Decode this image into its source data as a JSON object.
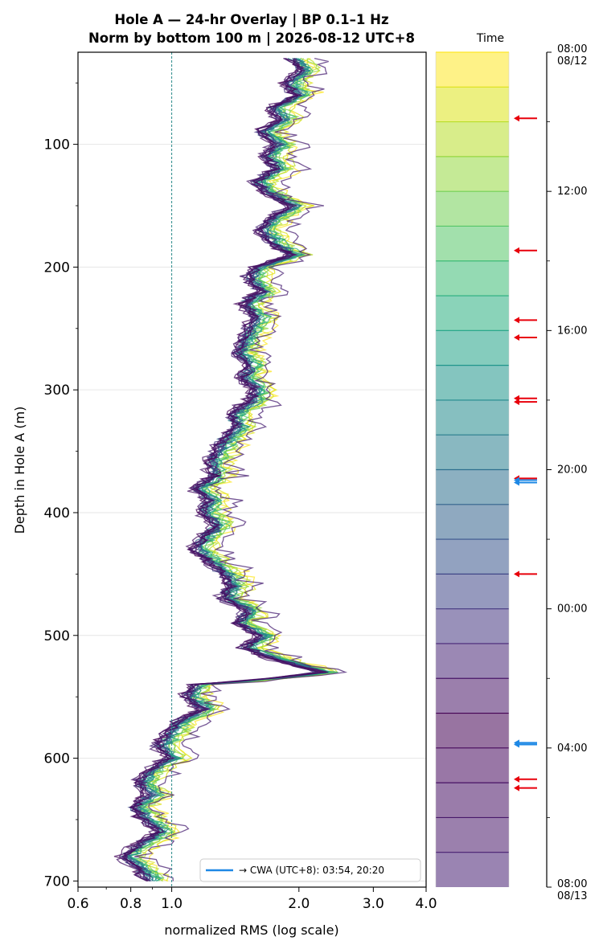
{
  "chart_data": {
    "type": "line",
    "title": "Hole A — 24-hr Overlay  |  BP 0.1–1 Hz",
    "subtitle": "Norm by bottom 100 m  |  2026-08-12 UTC+8",
    "xlabel": "normalized RMS  (log scale)",
    "ylabel": "Depth in Hole A (m)",
    "x_scale": "log",
    "xlim": [
      0.6,
      4.0
    ],
    "ylim": [
      705,
      25
    ],
    "x_ticks": [
      {
        "value": 0.6,
        "label": "0.6"
      },
      {
        "value": 0.8,
        "label": "0.8"
      },
      {
        "value": 1.0,
        "label": "1.0"
      },
      {
        "value": 2.0,
        "label": "2.0"
      },
      {
        "value": 3.0,
        "label": "3.0"
      },
      {
        "value": 4.0,
        "label": "4.0"
      }
    ],
    "y_ticks": [
      {
        "value": 100,
        "label": "100"
      },
      {
        "value": 200,
        "label": "200"
      },
      {
        "value": 300,
        "label": "300"
      },
      {
        "value": 400,
        "label": "400"
      },
      {
        "value": 500,
        "label": "500"
      },
      {
        "value": 600,
        "label": "600"
      },
      {
        "value": 700,
        "label": "700"
      }
    ],
    "grid": "horizontal",
    "reference_line": {
      "x": 1.0,
      "style": "dashed",
      "color": "#2a8a8a"
    },
    "legend": {
      "position": "bottom-right",
      "label": "→ CWA (UTC+8): 03:54, 20:20",
      "color": "#1e88e5"
    },
    "profile": {
      "depths": [
        30,
        40,
        50,
        60,
        70,
        80,
        90,
        100,
        110,
        120,
        130,
        140,
        150,
        160,
        170,
        180,
        190,
        200,
        210,
        220,
        230,
        240,
        250,
        260,
        270,
        280,
        290,
        300,
        310,
        320,
        330,
        340,
        350,
        360,
        370,
        380,
        390,
        400,
        410,
        420,
        430,
        440,
        450,
        460,
        470,
        480,
        490,
        500,
        510,
        520,
        530,
        540,
        550,
        560,
        570,
        580,
        590,
        600,
        610,
        620,
        630,
        640,
        650,
        660,
        670,
        680,
        690,
        700
      ],
      "rms": [
        1.95,
        2.05,
        1.9,
        2.0,
        1.75,
        1.85,
        1.65,
        1.8,
        1.7,
        1.8,
        1.6,
        1.7,
        1.95,
        1.75,
        1.65,
        1.75,
        1.95,
        1.6,
        1.55,
        1.65,
        1.5,
        1.6,
        1.55,
        1.5,
        1.45,
        1.55,
        1.5,
        1.6,
        1.55,
        1.4,
        1.45,
        1.35,
        1.3,
        1.25,
        1.28,
        1.15,
        1.25,
        1.2,
        1.3,
        1.2,
        1.15,
        1.25,
        1.35,
        1.4,
        1.35,
        1.55,
        1.45,
        1.65,
        1.5,
        1.8,
        2.3,
        1.15,
        1.1,
        1.2,
        1.05,
        1.0,
        0.95,
        1.0,
        0.9,
        0.85,
        0.9,
        0.82,
        0.88,
        0.95,
        0.85,
        0.78,
        0.85,
        0.9
      ]
    },
    "series": [
      {
        "hour_offset": 0,
        "factor": 1.09,
        "jitter": 0.04
      },
      {
        "hour_offset": 1,
        "factor": 1.08,
        "jitter": 0.03
      },
      {
        "hour_offset": 2,
        "factor": 1.06,
        "jitter": 0.035
      },
      {
        "hour_offset": 3,
        "factor": 1.05,
        "jitter": 0.03
      },
      {
        "hour_offset": 4,
        "factor": 1.04,
        "jitter": 0.03
      },
      {
        "hour_offset": 5,
        "factor": 1.03,
        "jitter": 0.025
      },
      {
        "hour_offset": 6,
        "factor": 1.03,
        "jitter": 0.03
      },
      {
        "hour_offset": 7,
        "factor": 1.02,
        "jitter": 0.025
      },
      {
        "hour_offset": 8,
        "factor": 1.02,
        "jitter": 0.03
      },
      {
        "hour_offset": 9,
        "factor": 1.01,
        "jitter": 0.02
      },
      {
        "hour_offset": 10,
        "factor": 1.01,
        "jitter": 0.025
      },
      {
        "hour_offset": 11,
        "factor": 1.0,
        "jitter": 0.02
      },
      {
        "hour_offset": 12,
        "factor": 1.0,
        "jitter": 0.02
      },
      {
        "hour_offset": 13,
        "factor": 0.995,
        "jitter": 0.02
      },
      {
        "hour_offset": 14,
        "factor": 0.99,
        "jitter": 0.02
      },
      {
        "hour_offset": 15,
        "factor": 0.99,
        "jitter": 0.02
      },
      {
        "hour_offset": 16,
        "factor": 0.985,
        "jitter": 0.02
      },
      {
        "hour_offset": 17,
        "factor": 0.98,
        "jitter": 0.02
      },
      {
        "hour_offset": 18,
        "factor": 0.98,
        "jitter": 0.02
      },
      {
        "hour_offset": 19,
        "factor": 0.975,
        "jitter": 0.02
      },
      {
        "hour_offset": 20,
        "factor": 0.975,
        "jitter": 0.02
      },
      {
        "hour_offset": 21,
        "factor": 0.97,
        "jitter": 0.02
      },
      {
        "hour_offset": 22,
        "factor": 0.97,
        "jitter": 0.025
      },
      {
        "hour_offset": 23,
        "factor": 1.12,
        "jitter": 0.06
      }
    ],
    "colorbar": {
      "label": "Time",
      "colors": [
        "#fde725",
        "#dce319",
        "#b8de29",
        "#95d840",
        "#73d055",
        "#55c667",
        "#3cbb75",
        "#29af7f",
        "#20a386",
        "#1f968b",
        "#238a8d",
        "#287d8e",
        "#2d708e",
        "#33638d",
        "#39568c",
        "#404788",
        "#453781",
        "#482677",
        "#481567",
        "#440154",
        "#46085c",
        "#471164",
        "#48186a",
        "#471f72"
      ],
      "bands": 24,
      "ticks": [
        {
          "hour": 0,
          "label": "08:00\n08/12"
        },
        {
          "hour": 4,
          "label": "12:00"
        },
        {
          "hour": 8,
          "label": "16:00"
        },
        {
          "hour": 12,
          "label": "20:00"
        },
        {
          "hour": 16,
          "label": "00:00"
        },
        {
          "hour": 20,
          "label": "04:00"
        },
        {
          "hour": 24,
          "label": "08:00\n08/13"
        }
      ],
      "event_arrows": [
        {
          "hour": 1.9,
          "color": "#e8000b"
        },
        {
          "hour": 5.7,
          "color": "#e8000b"
        },
        {
          "hour": 7.7,
          "color": "#e8000b"
        },
        {
          "hour": 8.2,
          "color": "#e8000b"
        },
        {
          "hour": 9.95,
          "color": "#e8000b"
        },
        {
          "hour": 10.05,
          "color": "#e8000b"
        },
        {
          "hour": 12.25,
          "color": "#e8000b"
        },
        {
          "hour": 12.3,
          "color": "#1e88e5"
        },
        {
          "hour": 12.37,
          "color": "#1e88e5"
        },
        {
          "hour": 15.0,
          "color": "#e8000b"
        },
        {
          "hour": 19.85,
          "color": "#1e88e5"
        },
        {
          "hour": 19.9,
          "color": "#1e88e5"
        },
        {
          "hour": 20.9,
          "color": "#e8000b"
        },
        {
          "hour": 21.15,
          "color": "#e8000b"
        }
      ]
    }
  }
}
